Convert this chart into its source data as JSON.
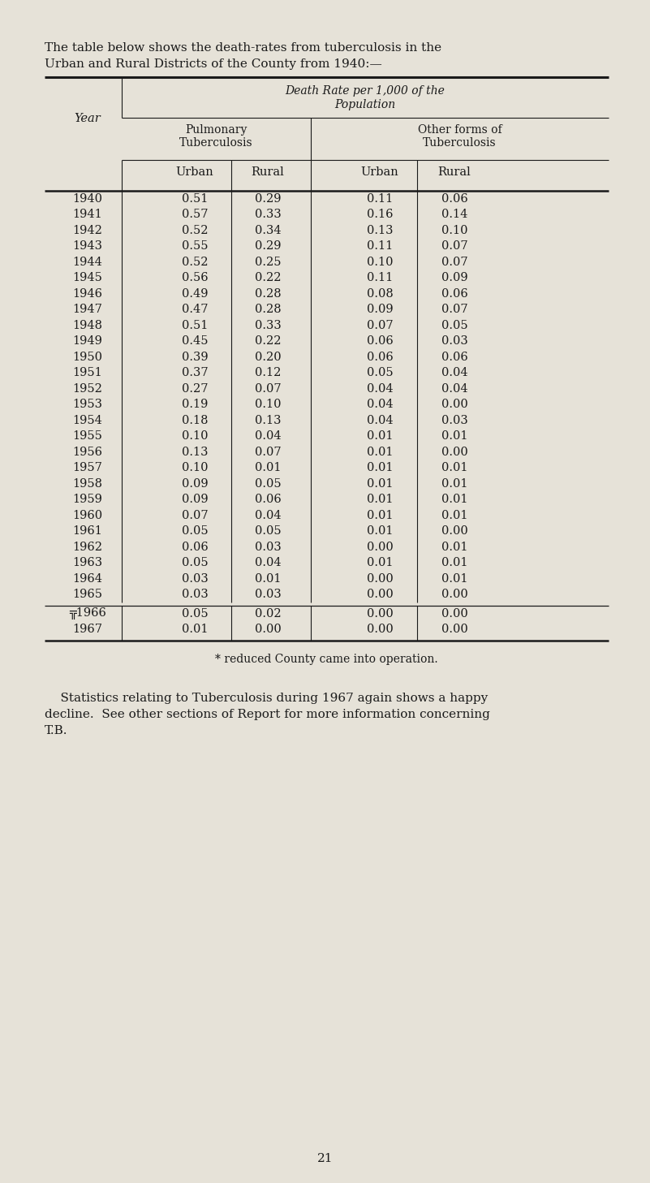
{
  "intro_text_line1": "The table below shows the death-rates from tuberculosis in the",
  "intro_text_line2": "Urban and Rural Districts of the County from 1940:—",
  "header1": "Death Rate per 1,000 of the",
  "header2": "Population",
  "col_group1_line1": "Pulmonary",
  "col_group1_line2": "Tuberculosis",
  "col_group2_line1": "Other forms of",
  "col_group2_line2": "Tuberculosis",
  "year_label": "Year",
  "col_labels": [
    "Urban",
    "Rural",
    "Urban",
    "Rural"
  ],
  "rows": [
    [
      "1940",
      "0.51",
      "0.29",
      "0.11",
      "0.06"
    ],
    [
      "1941",
      "0.57",
      "0.33",
      "0.16",
      "0.14"
    ],
    [
      "1942",
      "0.52",
      "0.34",
      "0.13",
      "0.10"
    ],
    [
      "1943",
      "0.55",
      "0.29",
      "0.11",
      "0.07"
    ],
    [
      "1944",
      "0.52",
      "0.25",
      "0.10",
      "0.07"
    ],
    [
      "1945",
      "0.56",
      "0.22",
      "0.11",
      "0.09"
    ],
    [
      "1946",
      "0.49",
      "0.28",
      "0.08",
      "0.06"
    ],
    [
      "1947",
      "0.47",
      "0.28",
      "0.09",
      "0.07"
    ],
    [
      "1948",
      "0.51",
      "0.33",
      "0.07",
      "0.05"
    ],
    [
      "1949",
      "0.45",
      "0.22",
      "0.06",
      "0.03"
    ],
    [
      "1950",
      "0.39",
      "0.20",
      "0.06",
      "0.06"
    ],
    [
      "1951",
      "0.37",
      "0.12",
      "0.05",
      "0.04"
    ],
    [
      "1952",
      "0.27",
      "0.07",
      "0.04",
      "0.04"
    ],
    [
      "1953",
      "0.19",
      "0.10",
      "0.04",
      "0.00"
    ],
    [
      "1954",
      "0.18",
      "0.13",
      "0.04",
      "0.03"
    ],
    [
      "1955",
      "0.10",
      "0.04",
      "0.01",
      "0.01"
    ],
    [
      "1956",
      "0.13",
      "0.07",
      "0.01",
      "0.00"
    ],
    [
      "1957",
      "0.10",
      "0.01",
      "0.01",
      "0.01"
    ],
    [
      "1958",
      "0.09",
      "0.05",
      "0.01",
      "0.01"
    ],
    [
      "1959",
      "0.09",
      "0.06",
      "0.01",
      "0.01"
    ],
    [
      "1960",
      "0.07",
      "0.04",
      "0.01",
      "0.01"
    ],
    [
      "1961",
      "0.05",
      "0.05",
      "0.01",
      "0.00"
    ],
    [
      "1962",
      "0.06",
      "0.03",
      "0.00",
      "0.01"
    ],
    [
      "1963",
      "0.05",
      "0.04",
      "0.01",
      "0.01"
    ],
    [
      "1964",
      "0.03",
      "0.01",
      "0.00",
      "0.01"
    ],
    [
      "1965",
      "0.03",
      "0.03",
      "0.00",
      "0.00"
    ]
  ],
  "footer_rows": [
    [
      "╦1966",
      "0.05",
      "0.02",
      "0.00",
      "0.00"
    ],
    [
      "1967",
      "0.01",
      "0.00",
      "0.00",
      "0.00"
    ]
  ],
  "footnote": "* reduced County came into operation.",
  "closing_line1": "    Statistics relating to Tuberculosis during 1967 again shows a happy",
  "closing_line2": "decline.  See other sections of Report for more information concerning",
  "closing_line3": "T.B.",
  "page_number": "21",
  "bg_color": "#e6e2d8",
  "text_color": "#1a1a1a",
  "line_color": "#1a1a1a"
}
